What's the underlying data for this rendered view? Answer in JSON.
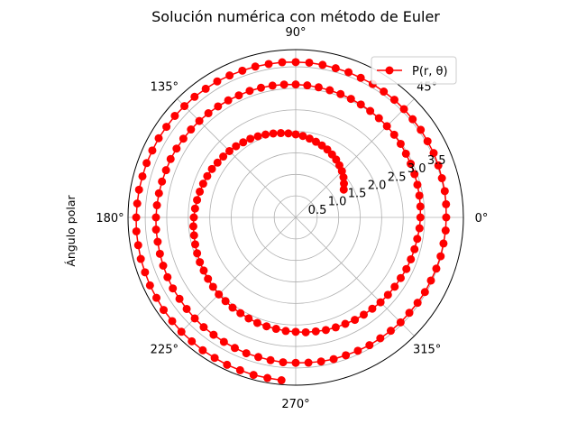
{
  "chart_data": {
    "type": "line",
    "projection": "polar",
    "title": "Solución numérica con método de Euler",
    "ylabel": "Ángulo polar",
    "rlim": [
      0,
      3.9
    ],
    "r_ticks": [
      0.5,
      1.0,
      1.5,
      2.0,
      2.5,
      3.0,
      3.5
    ],
    "r_tick_labels": [
      "0.5",
      "1.0",
      "1.5",
      "2.0",
      "2.5",
      "3.0",
      "3.5"
    ],
    "theta_ticks_deg": [
      0,
      45,
      90,
      135,
      180,
      225,
      270,
      315
    ],
    "theta_tick_labels": [
      "0°",
      "45°",
      "90°",
      "135°",
      "180°",
      "225°",
      "270°",
      "315°"
    ],
    "grid": true,
    "legend": "top-right",
    "series": [
      {
        "name": "P(r, θ)",
        "color": "#ff0000",
        "marker": "circle",
        "theta_start_deg": 30,
        "theta_step_deg": 5,
        "r_values": [
          1.29,
          1.37,
          1.45,
          1.52,
          1.58,
          1.64,
          1.69,
          1.74,
          1.78,
          1.82,
          1.86,
          1.9,
          1.93,
          1.96,
          1.99,
          2.02,
          2.05,
          2.08,
          2.11,
          2.13,
          2.16,
          2.18,
          2.2,
          2.22,
          2.25,
          2.27,
          2.29,
          2.31,
          2.33,
          2.35,
          2.37,
          2.39,
          2.4,
          2.42,
          2.44,
          2.46,
          2.47,
          2.49,
          2.51,
          2.53,
          2.54,
          2.56,
          2.57,
          2.59,
          2.61,
          2.62,
          2.63,
          2.65,
          2.66,
          2.68,
          2.69,
          2.71,
          2.72,
          2.73,
          2.75,
          2.76,
          2.77,
          2.79,
          2.8,
          2.81,
          2.82,
          2.84,
          2.85,
          2.86,
          2.87,
          2.89,
          2.9,
          2.91,
          2.92,
          2.93,
          2.94,
          2.95,
          2.96,
          2.98,
          2.99,
          3.0,
          3.01,
          3.02,
          3.03,
          3.04,
          3.05,
          3.06,
          3.07,
          3.08,
          3.09,
          3.1,
          3.11,
          3.12,
          3.13,
          3.13,
          3.14,
          3.15,
          3.16,
          3.17,
          3.18,
          3.19,
          3.2,
          3.21,
          3.21,
          3.22,
          3.23,
          3.24,
          3.25,
          3.26,
          3.26,
          3.27,
          3.28,
          3.29,
          3.3,
          3.3,
          3.31,
          3.32,
          3.33,
          3.33,
          3.34,
          3.35,
          3.36,
          3.36,
          3.37,
          3.38,
          3.38,
          3.39,
          3.4,
          3.41,
          3.41,
          3.42,
          3.43,
          3.43,
          3.44,
          3.45,
          3.45,
          3.46,
          3.47,
          3.47,
          3.48,
          3.49,
          3.49,
          3.5,
          3.5,
          3.51,
          3.52,
          3.52,
          3.53,
          3.54,
          3.54,
          3.55,
          3.55,
          3.56,
          3.57,
          3.57,
          3.58,
          3.58,
          3.59,
          3.59,
          3.6,
          3.61,
          3.61,
          3.62,
          3.62,
          3.63,
          3.63,
          3.64,
          3.65,
          3.65,
          3.66,
          3.66,
          3.67,
          3.67,
          3.68,
          3.68,
          3.69,
          3.69,
          3.7,
          3.7,
          3.71,
          3.72,
          3.72,
          3.73,
          3.73,
          3.74,
          3.74,
          3.75,
          3.75,
          3.76,
          3.76,
          3.77,
          3.77,
          3.78,
          3.78,
          3.79,
          3.79,
          3.8
        ]
      }
    ]
  }
}
